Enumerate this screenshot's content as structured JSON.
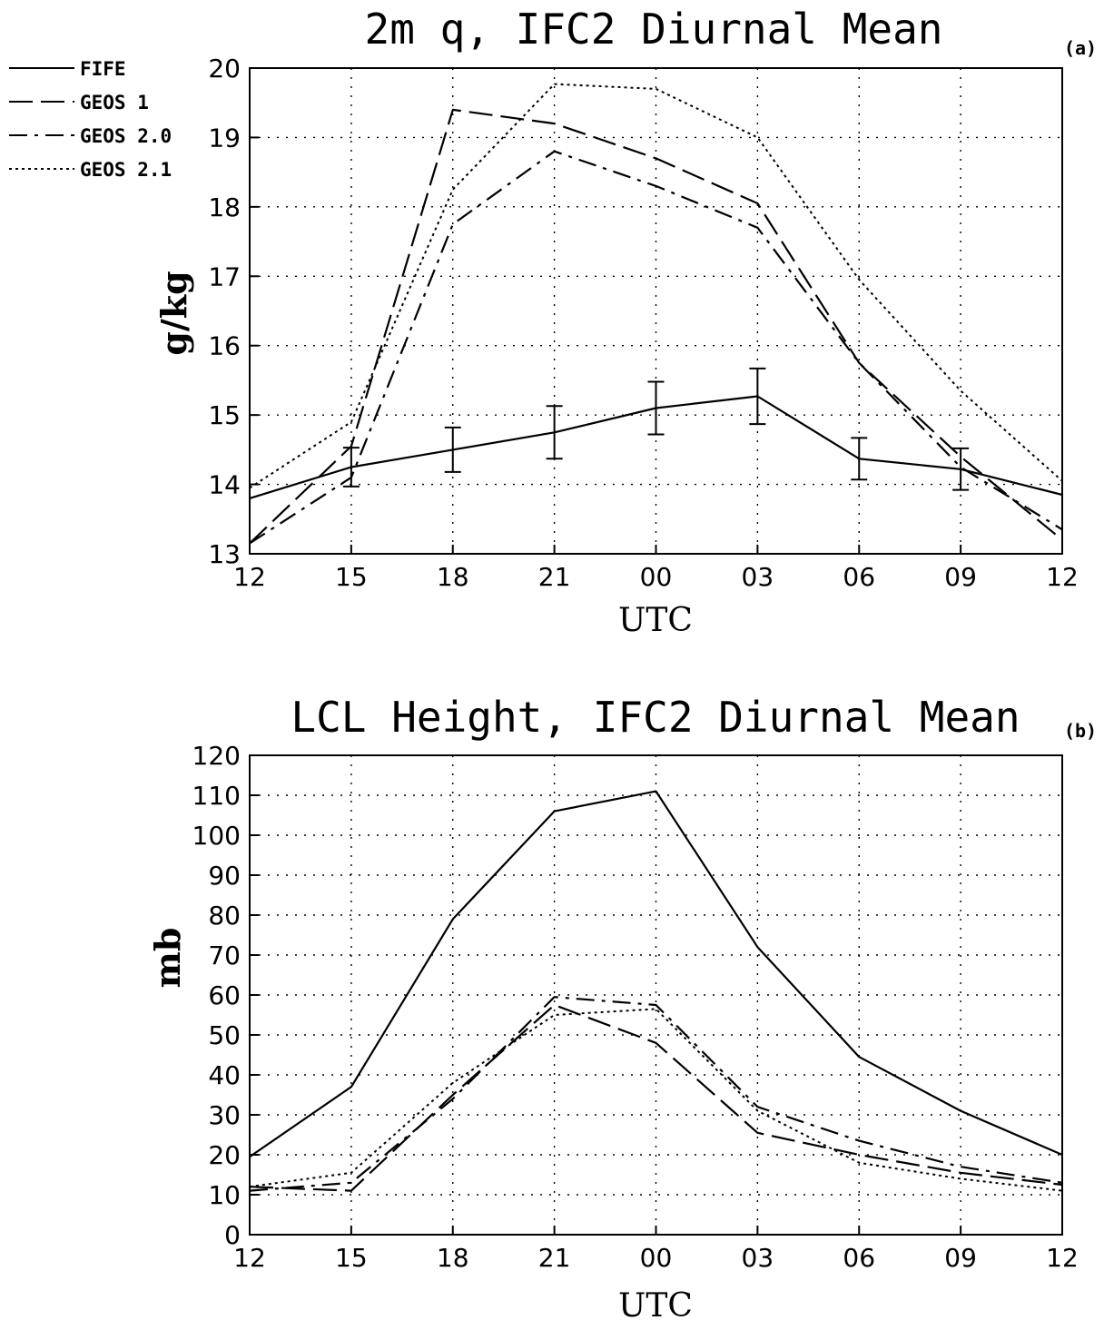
{
  "chart_data": [
    {
      "type": "line",
      "panel_label": "(a)",
      "title": "2m q, IFC2 Diurnal Mean",
      "xlabel": "UTC",
      "ylabel": "g/kg",
      "categories": [
        "12",
        "15",
        "18",
        "21",
        "00",
        "03",
        "06",
        "09",
        "12"
      ],
      "ylim": [
        13,
        20
      ],
      "yticks": [
        "13",
        "14",
        "15",
        "16",
        "17",
        "18",
        "19",
        "20"
      ],
      "grid": true,
      "legend_position": "top-left, outside plot area",
      "series": [
        {
          "name": "FIFE",
          "style": "solid",
          "values": [
            13.8,
            14.25,
            14.5,
            14.75,
            15.1,
            15.27,
            14.37,
            14.22,
            13.85
          ],
          "error": [
            null,
            0.28,
            0.32,
            0.38,
            0.38,
            0.4,
            0.3,
            0.3,
            null
          ]
        },
        {
          "name": "GEOS 1",
          "style": "longdash",
          "values": [
            13.15,
            14.55,
            19.4,
            19.2,
            18.7,
            18.05,
            15.75,
            14.4,
            13.2
          ]
        },
        {
          "name": "GEOS 2.0",
          "style": "dashdot",
          "values": [
            13.15,
            14.1,
            17.75,
            18.8,
            18.3,
            17.7,
            15.75,
            14.25,
            13.35
          ]
        },
        {
          "name": "GEOS 2.1",
          "style": "dotted",
          "values": [
            13.95,
            14.9,
            18.25,
            19.77,
            19.7,
            19.0,
            16.95,
            15.35,
            14.05
          ]
        }
      ]
    },
    {
      "type": "line",
      "panel_label": "(b)",
      "title": "LCL Height, IFC2 Diurnal Mean",
      "xlabel": "UTC",
      "ylabel": "mb",
      "categories": [
        "12",
        "15",
        "18",
        "21",
        "00",
        "03",
        "06",
        "09",
        "12"
      ],
      "ylim": [
        0,
        120
      ],
      "yticks": [
        "0",
        "10",
        "20",
        "30",
        "40",
        "50",
        "60",
        "70",
        "80",
        "90",
        "100",
        "110",
        "120"
      ],
      "grid": true,
      "series": [
        {
          "name": "FIFE",
          "style": "solid",
          "values": [
            19.5,
            37,
            79,
            106,
            111,
            72,
            44.5,
            31,
            20
          ]
        },
        {
          "name": "GEOS 1",
          "style": "longdash",
          "values": [
            12,
            11,
            35,
            57.5,
            48,
            25.5,
            20,
            15.5,
            12.5
          ]
        },
        {
          "name": "GEOS 2.0",
          "style": "dashdot",
          "values": [
            11,
            13,
            34,
            59.5,
            57.5,
            32,
            23.5,
            17,
            13
          ]
        },
        {
          "name": "GEOS 2.1",
          "style": "dotted",
          "values": [
            12,
            15.5,
            38,
            55,
            56.5,
            31,
            18,
            14,
            11
          ]
        }
      ]
    }
  ],
  "legend": [
    "FIFE",
    "GEOS 1",
    "GEOS 2.0",
    "GEOS 2.1"
  ]
}
